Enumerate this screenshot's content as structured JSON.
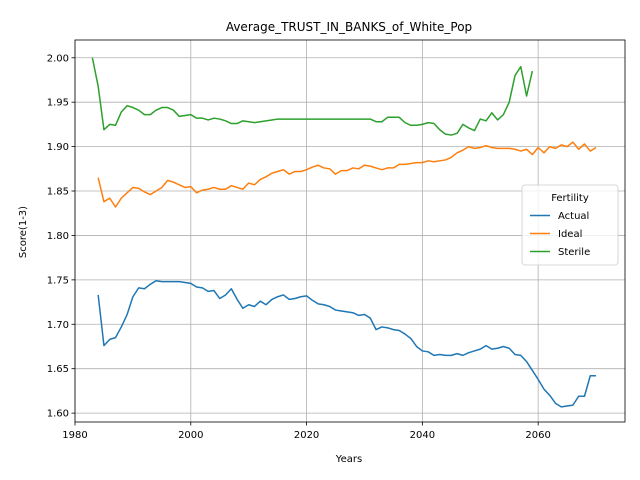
{
  "chart_data": {
    "type": "line",
    "title": "Average_TRUST_IN_BANKS_of_White_Pop",
    "xlabel": "Years",
    "ylabel": "Score(1-3)",
    "xlim": [
      1980,
      2075
    ],
    "ylim": [
      1.59,
      2.02
    ],
    "xticks": [
      1980,
      2000,
      2020,
      2040,
      2060
    ],
    "yticks": [
      1.6,
      1.65,
      1.7,
      1.75,
      1.8,
      1.85,
      1.9,
      1.95,
      2.0
    ],
    "ytick_labels": [
      "1.60",
      "1.65",
      "1.70",
      "1.75",
      "1.80",
      "1.85",
      "1.90",
      "1.95",
      "2.00"
    ],
    "grid": true,
    "legend": {
      "title": "Fertility",
      "placement": "center-right"
    },
    "series": [
      {
        "name": "Actual",
        "color": "#1f77b4",
        "points": [
          [
            1984,
            1.733
          ],
          [
            1985,
            1.676
          ],
          [
            1986,
            1.683
          ],
          [
            1987,
            1.685
          ],
          [
            1988,
            1.697
          ],
          [
            1989,
            1.711
          ],
          [
            1990,
            1.731
          ],
          [
            1991,
            1.741
          ],
          [
            1992,
            1.74
          ],
          [
            1993,
            1.745
          ],
          [
            1994,
            1.749
          ],
          [
            1995,
            1.748
          ],
          [
            1996,
            1.748
          ],
          [
            1997,
            1.748
          ],
          [
            1998,
            1.748
          ],
          [
            1999,
            1.747
          ],
          [
            2000,
            1.746
          ],
          [
            2001,
            1.742
          ],
          [
            2002,
            1.741
          ],
          [
            2003,
            1.737
          ],
          [
            2004,
            1.738
          ],
          [
            2005,
            1.729
          ],
          [
            2006,
            1.733
          ],
          [
            2007,
            1.74
          ],
          [
            2008,
            1.728
          ],
          [
            2009,
            1.718
          ],
          [
            2010,
            1.722
          ],
          [
            2011,
            1.72
          ],
          [
            2012,
            1.726
          ],
          [
            2013,
            1.722
          ],
          [
            2014,
            1.728
          ],
          [
            2015,
            1.731
          ],
          [
            2016,
            1.733
          ],
          [
            2017,
            1.728
          ],
          [
            2018,
            1.729
          ],
          [
            2019,
            1.731
          ],
          [
            2020,
            1.732
          ],
          [
            2021,
            1.727
          ],
          [
            2022,
            1.723
          ],
          [
            2023,
            1.722
          ],
          [
            2024,
            1.72
          ],
          [
            2025,
            1.716
          ],
          [
            2026,
            1.715
          ],
          [
            2027,
            1.714
          ],
          [
            2028,
            1.713
          ],
          [
            2029,
            1.71
          ],
          [
            2030,
            1.711
          ],
          [
            2031,
            1.707
          ],
          [
            2032,
            1.694
          ],
          [
            2033,
            1.697
          ],
          [
            2034,
            1.696
          ],
          [
            2035,
            1.694
          ],
          [
            2036,
            1.693
          ],
          [
            2037,
            1.689
          ],
          [
            2038,
            1.684
          ],
          [
            2039,
            1.675
          ],
          [
            2040,
            1.67
          ],
          [
            2041,
            1.669
          ],
          [
            2042,
            1.665
          ],
          [
            2043,
            1.666
          ],
          [
            2044,
            1.665
          ],
          [
            2045,
            1.665
          ],
          [
            2046,
            1.667
          ],
          [
            2047,
            1.665
          ],
          [
            2048,
            1.668
          ],
          [
            2049,
            1.67
          ],
          [
            2050,
            1.672
          ],
          [
            2051,
            1.676
          ],
          [
            2052,
            1.672
          ],
          [
            2053,
            1.673
          ],
          [
            2054,
            1.675
          ],
          [
            2055,
            1.673
          ],
          [
            2056,
            1.666
          ],
          [
            2057,
            1.665
          ],
          [
            2058,
            1.658
          ],
          [
            2059,
            1.648
          ],
          [
            2060,
            1.638
          ],
          [
            2061,
            1.627
          ],
          [
            2062,
            1.62
          ],
          [
            2063,
            1.611
          ],
          [
            2064,
            1.607
          ],
          [
            2065,
            1.608
          ],
          [
            2066,
            1.609
          ],
          [
            2067,
            1.619
          ],
          [
            2068,
            1.619
          ],
          [
            2069,
            1.642
          ],
          [
            2070,
            1.642
          ]
        ]
      },
      {
        "name": "Ideal",
        "color": "#ff7f0e",
        "points": [
          [
            1984,
            1.865
          ],
          [
            1985,
            1.838
          ],
          [
            1986,
            1.842
          ],
          [
            1987,
            1.832
          ],
          [
            1988,
            1.842
          ],
          [
            1989,
            1.848
          ],
          [
            1990,
            1.854
          ],
          [
            1991,
            1.853
          ],
          [
            1992,
            1.849
          ],
          [
            1993,
            1.846
          ],
          [
            1994,
            1.85
          ],
          [
            1995,
            1.854
          ],
          [
            1996,
            1.862
          ],
          [
            1997,
            1.86
          ],
          [
            1998,
            1.857
          ],
          [
            1999,
            1.854
          ],
          [
            2000,
            1.855
          ],
          [
            2001,
            1.848
          ],
          [
            2002,
            1.851
          ],
          [
            2003,
            1.852
          ],
          [
            2004,
            1.854
          ],
          [
            2005,
            1.852
          ],
          [
            2006,
            1.852
          ],
          [
            2007,
            1.856
          ],
          [
            2008,
            1.854
          ],
          [
            2009,
            1.852
          ],
          [
            2010,
            1.859
          ],
          [
            2011,
            1.857
          ],
          [
            2012,
            1.863
          ],
          [
            2013,
            1.866
          ],
          [
            2014,
            1.87
          ],
          [
            2015,
            1.872
          ],
          [
            2016,
            1.874
          ],
          [
            2017,
            1.869
          ],
          [
            2018,
            1.872
          ],
          [
            2019,
            1.872
          ],
          [
            2020,
            1.874
          ],
          [
            2021,
            1.877
          ],
          [
            2022,
            1.879
          ],
          [
            2023,
            1.876
          ],
          [
            2024,
            1.875
          ],
          [
            2025,
            1.869
          ],
          [
            2026,
            1.873
          ],
          [
            2027,
            1.873
          ],
          [
            2028,
            1.876
          ],
          [
            2029,
            1.875
          ],
          [
            2030,
            1.879
          ],
          [
            2031,
            1.878
          ],
          [
            2032,
            1.876
          ],
          [
            2033,
            1.874
          ],
          [
            2034,
            1.876
          ],
          [
            2035,
            1.876
          ],
          [
            2036,
            1.88
          ],
          [
            2037,
            1.88
          ],
          [
            2038,
            1.881
          ],
          [
            2039,
            1.882
          ],
          [
            2040,
            1.882
          ],
          [
            2041,
            1.884
          ],
          [
            2042,
            1.883
          ],
          [
            2043,
            1.884
          ],
          [
            2044,
            1.885
          ],
          [
            2045,
            1.888
          ],
          [
            2046,
            1.893
          ],
          [
            2047,
            1.896
          ],
          [
            2048,
            1.9
          ],
          [
            2049,
            1.898
          ],
          [
            2050,
            1.899
          ],
          [
            2051,
            1.901
          ],
          [
            2052,
            1.899
          ],
          [
            2053,
            1.898
          ],
          [
            2054,
            1.898
          ],
          [
            2055,
            1.898
          ],
          [
            2056,
            1.897
          ],
          [
            2057,
            1.895
          ],
          [
            2058,
            1.897
          ],
          [
            2059,
            1.891
          ],
          [
            2060,
            1.899
          ],
          [
            2061,
            1.893
          ],
          [
            2062,
            1.9
          ],
          [
            2063,
            1.898
          ],
          [
            2064,
            1.902
          ],
          [
            2065,
            1.9
          ],
          [
            2066,
            1.905
          ],
          [
            2067,
            1.897
          ],
          [
            2068,
            1.903
          ],
          [
            2069,
            1.895
          ],
          [
            2070,
            1.899
          ]
        ]
      },
      {
        "name": "Sterile",
        "color": "#2ca02c",
        "points": [
          [
            1983,
            2.0
          ],
          [
            1984,
            1.968
          ],
          [
            1985,
            1.919
          ],
          [
            1986,
            1.925
          ],
          [
            1987,
            1.924
          ],
          [
            1988,
            1.939
          ],
          [
            1989,
            1.946
          ],
          [
            1990,
            1.944
          ],
          [
            1991,
            1.941
          ],
          [
            1992,
            1.936
          ],
          [
            1993,
            1.936
          ],
          [
            1994,
            1.941
          ],
          [
            1995,
            1.944
          ],
          [
            1996,
            1.944
          ],
          [
            1997,
            1.941
          ],
          [
            1998,
            1.934
          ],
          [
            1999,
            1.935
          ],
          [
            2000,
            1.936
          ],
          [
            2001,
            1.932
          ],
          [
            2002,
            1.932
          ],
          [
            2003,
            1.93
          ],
          [
            2004,
            1.932
          ],
          [
            2005,
            1.931
          ],
          [
            2006,
            1.929
          ],
          [
            2007,
            1.926
          ],
          [
            2008,
            1.926
          ],
          [
            2009,
            1.929
          ],
          [
            2010,
            1.928
          ],
          [
            2011,
            1.927
          ],
          [
            2012,
            1.928
          ],
          [
            2013,
            1.929
          ],
          [
            2014,
            1.93
          ],
          [
            2015,
            1.931
          ],
          [
            2016,
            1.931
          ],
          [
            2017,
            1.931
          ],
          [
            2018,
            1.931
          ],
          [
            2019,
            1.931
          ],
          [
            2020,
            1.931
          ],
          [
            2021,
            1.931
          ],
          [
            2022,
            1.931
          ],
          [
            2023,
            1.931
          ],
          [
            2024,
            1.931
          ],
          [
            2025,
            1.931
          ],
          [
            2026,
            1.931
          ],
          [
            2027,
            1.931
          ],
          [
            2028,
            1.931
          ],
          [
            2029,
            1.931
          ],
          [
            2030,
            1.931
          ],
          [
            2031,
            1.931
          ],
          [
            2032,
            1.928
          ],
          [
            2033,
            1.928
          ],
          [
            2034,
            1.933
          ],
          [
            2035,
            1.933
          ],
          [
            2036,
            1.933
          ],
          [
            2037,
            1.927
          ],
          [
            2038,
            1.924
          ],
          [
            2039,
            1.924
          ],
          [
            2040,
            1.925
          ],
          [
            2041,
            1.927
          ],
          [
            2042,
            1.926
          ],
          [
            2043,
            1.919
          ],
          [
            2044,
            1.914
          ],
          [
            2045,
            1.913
          ],
          [
            2046,
            1.915
          ],
          [
            2047,
            1.925
          ],
          [
            2048,
            1.921
          ],
          [
            2049,
            1.918
          ],
          [
            2050,
            1.931
          ],
          [
            2051,
            1.929
          ],
          [
            2052,
            1.938
          ],
          [
            2053,
            1.93
          ],
          [
            2054,
            1.936
          ],
          [
            2055,
            1.95
          ],
          [
            2056,
            1.98
          ],
          [
            2057,
            1.99
          ],
          [
            2058,
            1.957
          ],
          [
            2059,
            1.985
          ]
        ]
      }
    ]
  }
}
